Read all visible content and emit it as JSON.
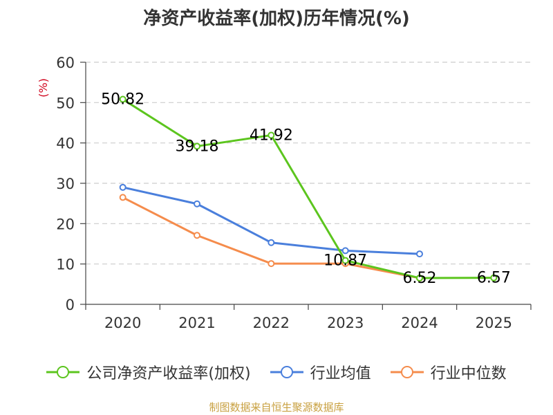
{
  "chart_data": {
    "type": "line",
    "title": "净资产收益率(加权)历年情况(%)",
    "ylabel": "(%)",
    "xlabel": "",
    "categories": [
      "2020",
      "2021",
      "2022",
      "2023",
      "2024",
      "2025"
    ],
    "ylim": [
      0,
      60
    ],
    "yticks": [
      0,
      10,
      20,
      30,
      40,
      50,
      60
    ],
    "grid": true,
    "legend_position": "bottom",
    "series": [
      {
        "name": "公司净资产收益率(加权)",
        "color": "#5cc51e",
        "values": [
          50.82,
          39.18,
          41.92,
          10.87,
          6.52,
          6.57
        ],
        "labels": [
          "50.82",
          "39.18",
          "41.92",
          "10.87",
          "6.52",
          "6.57"
        ]
      },
      {
        "name": "行业均值",
        "color": "#4a7fdc",
        "values": [
          29.0,
          24.9,
          15.3,
          13.3,
          12.5,
          null
        ]
      },
      {
        "name": "行业中位数",
        "color": "#f58c4c",
        "values": [
          26.5,
          17.1,
          10.1,
          10.1,
          6.5,
          null
        ]
      }
    ]
  },
  "source_note": "制图数据来自恒生聚源数据库"
}
